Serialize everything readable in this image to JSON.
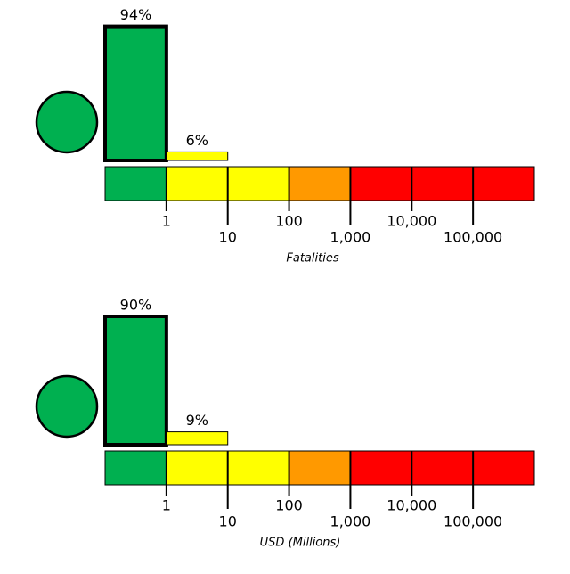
{
  "chart_data": [
    {
      "type": "histogram",
      "x_label": "Fatalities",
      "log_x": true,
      "xlim": [
        0.1,
        1000000
      ],
      "xticks": [
        1,
        10,
        100,
        {
          "value": 1000,
          "label": "1,000"
        },
        {
          "value": 10000,
          "label": "10,000"
        },
        {
          "value": 100000,
          "label": "100,000"
        }
      ],
      "ylim": [
        0,
        100
      ],
      "values": [
        94,
        6,
        0,
        0,
        0,
        0,
        0
      ],
      "value_labels": [
        "94%",
        "6%",
        null,
        null,
        null,
        null,
        null
      ],
      "colors": [
        "#00b050",
        "#ffff00",
        "#ffff00",
        "#ff9900",
        "#ff0000",
        "#ff0000",
        "#ff0000"
      ],
      "alert_color": "#00b050"
    },
    {
      "type": "histogram",
      "x_label": "USD (Millions)",
      "log_x": true,
      "xlim": [
        0.1,
        1000000
      ],
      "xticks": [
        1,
        10,
        100,
        {
          "value": 1000,
          "label": "1,000"
        },
        {
          "value": 10000,
          "label": "10,000"
        },
        {
          "value": 100000,
          "label": "100,000"
        }
      ],
      "ylim": [
        0,
        100
      ],
      "values": [
        90,
        9,
        0,
        0,
        0,
        0,
        0
      ],
      "value_labels": [
        "90%",
        "9%",
        null,
        null,
        null,
        null,
        null
      ],
      "colors": [
        "#00b050",
        "#ffff00",
        "#ffff00",
        "#ff9900",
        "#ff0000",
        "#ff0000",
        "#ff0000"
      ],
      "alert_color": "#00b050"
    }
  ]
}
